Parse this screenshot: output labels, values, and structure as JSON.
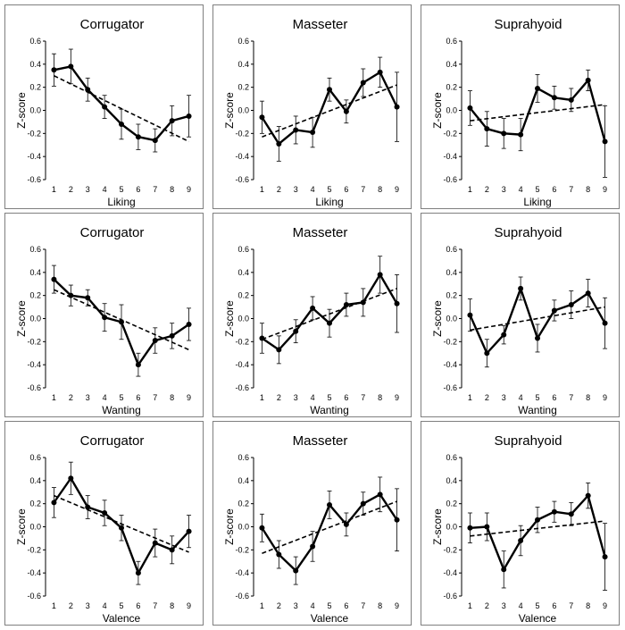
{
  "chart_data": [
    {
      "type": "line",
      "title": "Corrugator",
      "xlabel": "Liking",
      "ylabel": "Z-score",
      "ylim": [
        -0.6,
        0.6
      ],
      "yticks": [
        "0.6",
        "0.4",
        "0.2",
        "0.0",
        "-0.2",
        "-0.4",
        "-0.6"
      ],
      "categories": [
        "1",
        "2",
        "3",
        "4",
        "5",
        "6",
        "7",
        "8",
        "9"
      ],
      "values": [
        0.35,
        0.38,
        0.18,
        0.03,
        -0.12,
        -0.23,
        -0.26,
        -0.09,
        -0.05
      ],
      "error": [
        0.14,
        0.15,
        0.1,
        0.1,
        0.13,
        0.11,
        0.1,
        0.13,
        0.18
      ],
      "trend": [
        0.3,
        -0.27
      ]
    },
    {
      "type": "line",
      "title": "Masseter",
      "xlabel": "Liking",
      "ylabel": "Z-score",
      "ylim": [
        -0.6,
        0.6
      ],
      "yticks": [
        "0.6",
        "0.4",
        "0.2",
        "0.0",
        "-0.2",
        "-0.4",
        "-0.6"
      ],
      "categories": [
        "1",
        "2",
        "3",
        "4",
        "5",
        "6",
        "7",
        "8",
        "9"
      ],
      "values": [
        -0.06,
        -0.29,
        -0.17,
        -0.19,
        0.18,
        -0.01,
        0.24,
        0.33,
        0.03
      ],
      "error": [
        0.14,
        0.15,
        0.12,
        0.13,
        0.1,
        0.1,
        0.12,
        0.13,
        0.3
      ],
      "trend": [
        -0.23,
        0.22
      ]
    },
    {
      "type": "line",
      "title": "Suprahyoid",
      "xlabel": "Liking",
      "ylabel": "Z-score",
      "ylim": [
        -0.6,
        0.6
      ],
      "yticks": [
        "0.6",
        "0.4",
        "0.2",
        "0.0",
        "-0.2",
        "-0.4",
        "-0.6"
      ],
      "categories": [
        "1",
        "2",
        "3",
        "4",
        "5",
        "6",
        "7",
        "8",
        "9"
      ],
      "values": [
        0.02,
        -0.16,
        -0.2,
        -0.21,
        0.19,
        0.11,
        0.09,
        0.26,
        -0.27
      ],
      "error": [
        0.15,
        0.15,
        0.13,
        0.14,
        0.12,
        0.1,
        0.1,
        0.09,
        0.31
      ],
      "trend": [
        -0.09,
        0.05
      ]
    },
    {
      "type": "line",
      "title": "Corrugator",
      "xlabel": "Wanting",
      "ylabel": "Z-score",
      "ylim": [
        -0.6,
        0.6
      ],
      "yticks": [
        "0.6",
        "0.4",
        "0.2",
        "0.0",
        "-0.2",
        "-0.4",
        "-0.6"
      ],
      "categories": [
        "1",
        "2",
        "3",
        "4",
        "5",
        "6",
        "7",
        "8",
        "9"
      ],
      "values": [
        0.34,
        0.2,
        0.18,
        0.01,
        -0.03,
        -0.4,
        -0.19,
        -0.15,
        -0.05
      ],
      "error": [
        0.12,
        0.09,
        0.07,
        0.12,
        0.15,
        0.1,
        0.11,
        0.11,
        0.14
      ],
      "trend": [
        0.25,
        -0.27
      ]
    },
    {
      "type": "line",
      "title": "Masseter",
      "xlabel": "Wanting",
      "ylabel": "Z-score",
      "ylim": [
        -0.6,
        0.6
      ],
      "yticks": [
        "0.6",
        "0.4",
        "0.2",
        "0.0",
        "-0.2",
        "-0.4",
        "-0.6"
      ],
      "categories": [
        "1",
        "2",
        "3",
        "4",
        "5",
        "6",
        "7",
        "8",
        "9"
      ],
      "values": [
        -0.17,
        -0.27,
        -0.11,
        0.09,
        -0.04,
        0.12,
        0.14,
        0.38,
        0.13
      ],
      "error": [
        0.13,
        0.12,
        0.1,
        0.1,
        0.12,
        0.1,
        0.12,
        0.16,
        0.25
      ],
      "trend": [
        -0.18,
        0.26
      ]
    },
    {
      "type": "line",
      "title": "Suprahyoid",
      "xlabel": "Wanting",
      "ylabel": "Z-score",
      "ylim": [
        -0.6,
        0.6
      ],
      "yticks": [
        "0.6",
        "0.4",
        "0.2",
        "0.0",
        "-0.2",
        "-0.4",
        "-0.6"
      ],
      "categories": [
        "1",
        "2",
        "3",
        "4",
        "5",
        "6",
        "7",
        "8",
        "9"
      ],
      "values": [
        0.03,
        -0.3,
        -0.14,
        0.26,
        -0.17,
        0.07,
        0.12,
        0.22,
        -0.04
      ],
      "error": [
        0.14,
        0.12,
        0.08,
        0.1,
        0.12,
        0.09,
        0.12,
        0.12,
        0.22
      ],
      "trend": [
        -0.1,
        0.1
      ]
    },
    {
      "type": "line",
      "title": "Corrugator",
      "xlabel": "Valence",
      "ylabel": "Z-score",
      "ylim": [
        -0.6,
        0.6
      ],
      "yticks": [
        "0.6",
        "0.4",
        "0.2",
        "0.0",
        "-0.2",
        "-0.4",
        "-0.6"
      ],
      "categories": [
        "1",
        "2",
        "3",
        "4",
        "5",
        "6",
        "7",
        "8",
        "9"
      ],
      "values": [
        0.21,
        0.42,
        0.17,
        0.12,
        -0.01,
        -0.4,
        -0.14,
        -0.2,
        -0.04
      ],
      "error": [
        0.13,
        0.14,
        0.1,
        0.11,
        0.11,
        0.1,
        0.12,
        0.12,
        0.14
      ],
      "trend": [
        0.27,
        -0.22
      ]
    },
    {
      "type": "line",
      "title": "Masseter",
      "xlabel": "Valence",
      "ylabel": "Z-score",
      "ylim": [
        -0.6,
        0.6
      ],
      "yticks": [
        "0.6",
        "0.4",
        "0.2",
        "0.0",
        "-0.2",
        "-0.4",
        "-0.6"
      ],
      "categories": [
        "1",
        "2",
        "3",
        "4",
        "5",
        "6",
        "7",
        "8",
        "9"
      ],
      "values": [
        -0.01,
        -0.24,
        -0.38,
        -0.17,
        0.19,
        0.02,
        0.2,
        0.28,
        0.06
      ],
      "error": [
        0.12,
        0.12,
        0.12,
        0.13,
        0.12,
        0.1,
        0.1,
        0.15,
        0.27
      ],
      "trend": [
        -0.23,
        0.22
      ]
    },
    {
      "type": "line",
      "title": "Suprahyoid",
      "xlabel": "Valence",
      "ylabel": "Z-score",
      "ylim": [
        -0.6,
        0.6
      ],
      "yticks": [
        "0.6",
        "0.4",
        "0.2",
        "0.0",
        "-0.2",
        "-0.4",
        "-0.6"
      ],
      "categories": [
        "1",
        "2",
        "3",
        "4",
        "5",
        "6",
        "7",
        "8",
        "9"
      ],
      "values": [
        -0.01,
        0.0,
        -0.37,
        -0.12,
        0.06,
        0.13,
        0.11,
        0.27,
        -0.26
      ],
      "error": [
        0.13,
        0.12,
        0.16,
        0.13,
        0.11,
        0.09,
        0.1,
        0.11,
        0.29
      ],
      "trend": [
        -0.08,
        0.05
      ]
    }
  ],
  "colors": {
    "line": "#000000",
    "border": "#7f7f7f",
    "tick": "#000000"
  }
}
